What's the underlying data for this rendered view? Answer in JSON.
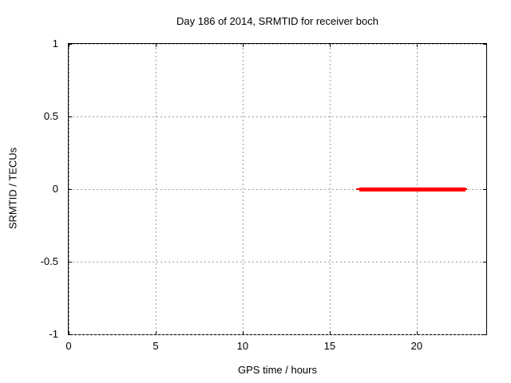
{
  "chart_data": {
    "type": "line",
    "title": "Day 186 of 2014, SRMTID for receiver boch",
    "xlabel": "GPS time / hours",
    "ylabel": "SRMTID / TECUs",
    "xlim": [
      0,
      24
    ],
    "ylim": [
      -1,
      1
    ],
    "x_ticks": [
      0,
      5,
      10,
      15,
      20
    ],
    "x_tick_labels": [
      "0",
      "5",
      "10",
      "15",
      "20"
    ],
    "y_ticks": [
      -1,
      -0.5,
      0,
      0.5,
      1
    ],
    "y_tick_labels": [
      "-1",
      "-0.5",
      "0",
      "0.5",
      "1"
    ],
    "grid": true,
    "legend_position": "none",
    "background_color": "#ffffff",
    "axis_color": "#000000",
    "grid_color": "#9e9e9e",
    "series": [
      {
        "name": "SRMTID",
        "color": "#ff0000",
        "style": "thick horizontal segment at constant y",
        "y": 0,
        "x_start": 16.5,
        "x_end": 22.9,
        "core_x_start": 16.7,
        "core_x_end": 22.8,
        "core_thickness_px": 5,
        "cap_thickness_px": 2,
        "points": [
          [
            16.5,
            0
          ],
          [
            22.9,
            0
          ]
        ]
      }
    ]
  }
}
